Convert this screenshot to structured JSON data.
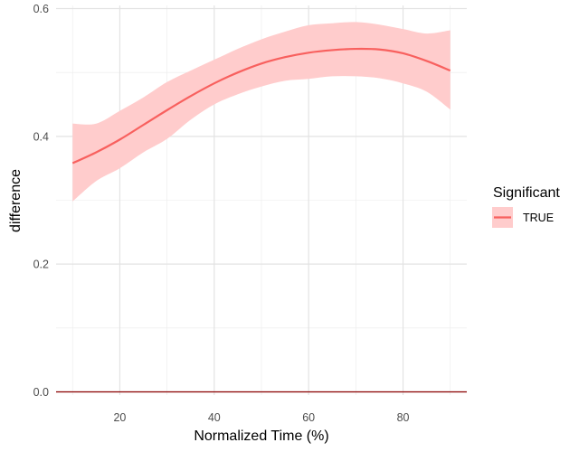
{
  "chart_data": {
    "type": "line",
    "xlabel": "Normalized Time (%)",
    "ylabel": "difference",
    "xlim": [
      6.5,
      93.5
    ],
    "ylim": [
      -0.005,
      0.605
    ],
    "x_ticks": [
      20,
      40,
      60,
      80
    ],
    "x_tick_labels": [
      "20",
      "40",
      "60",
      "80"
    ],
    "y_ticks": [
      0.0,
      0.2,
      0.4,
      0.6
    ],
    "y_tick_labels": [
      "0.0",
      "0.2",
      "0.4",
      "0.6"
    ],
    "grid": true,
    "legend": {
      "title": "Significant",
      "placement": "right",
      "entries": [
        "TRUE"
      ]
    },
    "series": [
      {
        "name": "TRUE",
        "color": "#f8605e",
        "ribbon_color": "#ffcccc",
        "x": [
          10,
          15,
          20,
          25,
          30,
          35,
          40,
          45,
          50,
          55,
          60,
          65,
          70,
          75,
          80,
          85,
          90
        ],
        "y": [
          0.358,
          0.375,
          0.395,
          0.418,
          0.441,
          0.463,
          0.483,
          0.5,
          0.514,
          0.524,
          0.531,
          0.535,
          0.537,
          0.536,
          0.53,
          0.518,
          0.503
        ],
        "lower": [
          0.298,
          0.33,
          0.35,
          0.375,
          0.396,
          0.426,
          0.45,
          0.466,
          0.478,
          0.487,
          0.49,
          0.494,
          0.494,
          0.491,
          0.483,
          0.47,
          0.442
        ],
        "upper": [
          0.42,
          0.42,
          0.44,
          0.461,
          0.485,
          0.503,
          0.52,
          0.537,
          0.552,
          0.564,
          0.574,
          0.577,
          0.579,
          0.575,
          0.568,
          0.561,
          0.566
        ]
      }
    ],
    "reference_line": {
      "y": 0.0,
      "color": "#8b0000"
    }
  }
}
